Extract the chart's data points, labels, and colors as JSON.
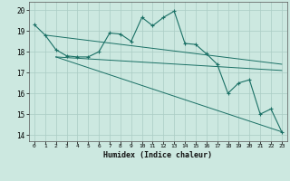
{
  "xlabel": "Humidex (Indice chaleur)",
  "ylabel": "",
  "xlim": [
    -0.5,
    23.5
  ],
  "ylim": [
    13.7,
    20.4
  ],
  "xticks": [
    0,
    1,
    2,
    3,
    4,
    5,
    6,
    7,
    8,
    9,
    10,
    11,
    12,
    13,
    14,
    15,
    16,
    17,
    18,
    19,
    20,
    21,
    22,
    23
  ],
  "yticks": [
    14,
    15,
    16,
    17,
    18,
    19,
    20
  ],
  "bg_color": "#cce8e0",
  "grid_color": "#aaccC4",
  "line_color": "#1a7065",
  "line1_x": [
    0,
    1,
    2,
    3,
    4,
    5,
    6,
    7,
    8,
    9,
    10,
    11,
    12,
    13,
    14,
    15,
    16,
    17,
    18,
    19,
    20,
    21,
    22,
    23
  ],
  "line1_y": [
    19.3,
    18.8,
    18.1,
    17.8,
    17.75,
    17.75,
    18.0,
    18.9,
    18.85,
    18.5,
    19.65,
    19.25,
    19.65,
    19.95,
    18.4,
    18.35,
    17.9,
    17.4,
    16.0,
    16.5,
    16.65,
    15.0,
    15.25,
    14.15
  ],
  "line2_x": [
    2,
    23
  ],
  "line2_y": [
    17.75,
    14.15
  ],
  "line3_x": [
    2,
    23
  ],
  "line3_y": [
    17.75,
    17.1
  ],
  "line4_x": [
    1,
    23
  ],
  "line4_y": [
    18.8,
    17.4
  ]
}
